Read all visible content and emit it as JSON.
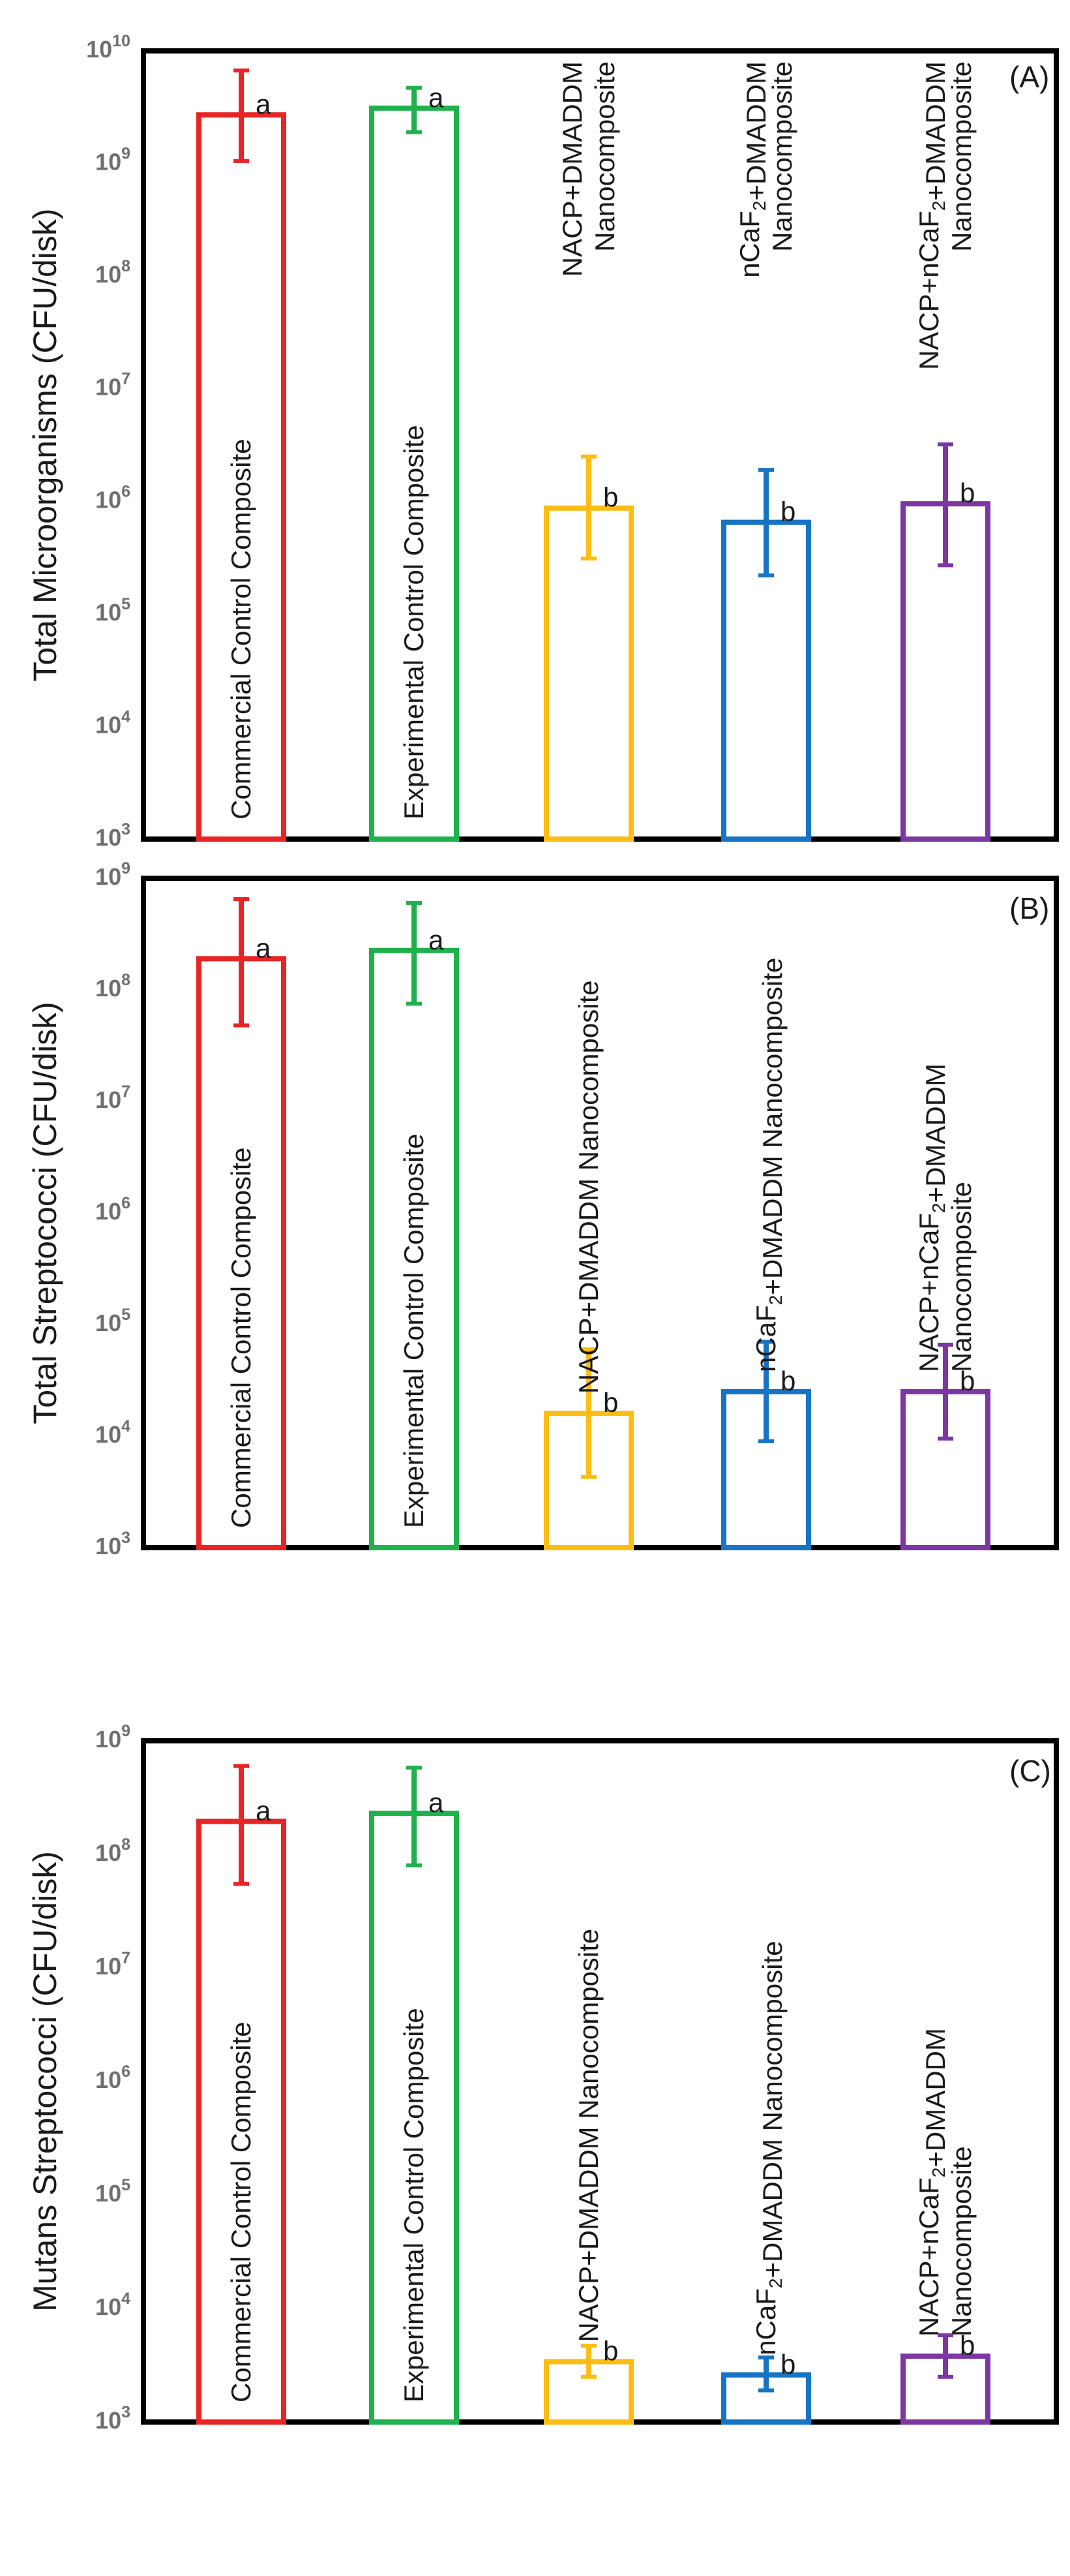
{
  "figure": {
    "panels": [
      {
        "title": "(A)",
        "ylabel": "Total Microorganisms (CFU/disk)"
      },
      {
        "title": "(B)",
        "ylabel": "Total Streptococci (CFU/disk)"
      },
      {
        "title": "(C)",
        "ylabel": "Mutans Streptococci (CFU/disk)"
      }
    ]
  },
  "chart_data": [
    {
      "type": "bar",
      "title": "(A)",
      "ylabel": "Total Microorganisms (CFU/disk)",
      "xlabel": "",
      "yscale": "log",
      "ylim": [
        1000,
        10000000000
      ],
      "yticks": [
        {
          "value": 1000,
          "base": "10",
          "exp": "3"
        },
        {
          "value": 10000,
          "base": "10",
          "exp": "4"
        },
        {
          "value": 100000,
          "base": "10",
          "exp": "5"
        },
        {
          "value": 1000000,
          "base": "10",
          "exp": "6"
        },
        {
          "value": 10000000,
          "base": "10",
          "exp": "7"
        },
        {
          "value": 100000000,
          "base": "10",
          "exp": "8"
        },
        {
          "value": 1000000000,
          "base": "10",
          "exp": "9"
        },
        {
          "value": 10000000000,
          "base": "10",
          "exp": "10"
        }
      ],
      "categories": [
        {
          "lines": [
            [
              {
                "t": "Commercial Control Composite"
              }
            ]
          ],
          "color": "#e82424",
          "value": 2700000000,
          "err_low": 1050000000,
          "err_high": 6700000000,
          "sig": "a"
        },
        {
          "lines": [
            [
              {
                "t": "Experimental Control Composite"
              }
            ]
          ],
          "color": "#1fb14b",
          "value": 3100000000,
          "err_low": 1900000000,
          "err_high": 4700000000,
          "sig": "a"
        },
        {
          "lines": [
            [
              {
                "t": "NACP+DMADDM"
              }
            ],
            [
              {
                "t": "Nanocomposite"
              }
            ]
          ],
          "color": "#fbbd13",
          "value": 870000,
          "err_low": 310000,
          "err_high": 2500000,
          "sig": "b"
        },
        {
          "lines": [
            [
              {
                "t": "nCaF"
              },
              {
                "t": "2",
                "sub": true
              },
              {
                "t": "+DMADDM"
              }
            ],
            [
              {
                "t": "Nanocomposite"
              }
            ]
          ],
          "color": "#1773c4",
          "value": 650000,
          "err_low": 220000,
          "err_high": 1900000,
          "sig": "b"
        },
        {
          "lines": [
            [
              {
                "t": "NACP+nCaF"
              },
              {
                "t": "2",
                "sub": true
              },
              {
                "t": "+DMADDM"
              }
            ],
            [
              {
                "t": "Nanocomposite"
              }
            ]
          ],
          "color": "#7d37a3",
          "value": 950000,
          "err_low": 270000,
          "err_high": 3200000,
          "sig": "b"
        }
      ]
    },
    {
      "type": "bar",
      "title": "(B)",
      "ylabel": "Total Streptococci (CFU/disk)",
      "xlabel": "",
      "yscale": "log",
      "ylim": [
        1000,
        1000000000
      ],
      "yticks": [
        {
          "value": 1000,
          "base": "10",
          "exp": "3"
        },
        {
          "value": 10000,
          "base": "10",
          "exp": "4"
        },
        {
          "value": 100000,
          "base": "10",
          "exp": "5"
        },
        {
          "value": 1000000,
          "base": "10",
          "exp": "6"
        },
        {
          "value": 10000000,
          "base": "10",
          "exp": "7"
        },
        {
          "value": 100000000,
          "base": "10",
          "exp": "8"
        },
        {
          "value": 1000000000,
          "base": "10",
          "exp": "9"
        }
      ],
      "categories": [
        {
          "lines": [
            [
              {
                "t": "Commercial Control Composite"
              }
            ]
          ],
          "color": "#e82424",
          "value": 190000000,
          "err_low": 48000000,
          "err_high": 650000000,
          "sig": "a"
        },
        {
          "lines": [
            [
              {
                "t": "Experimental Control Composite"
              }
            ]
          ],
          "color": "#1fb14b",
          "value": 225000000,
          "err_low": 75000000,
          "err_high": 600000000,
          "sig": "a"
        },
        {
          "lines": [
            [
              {
                "t": "NACP+DMADDM Nanocomposite"
              }
            ]
          ],
          "color": "#fbbd13",
          "value": 16000,
          "err_low": 4300,
          "err_high": 60000,
          "sig": "b"
        },
        {
          "lines": [
            [
              {
                "t": "nCaF"
              },
              {
                "t": "2",
                "sub": true
              },
              {
                "t": "+DMADDM Nanocomposite"
              }
            ]
          ],
          "color": "#1773c4",
          "value": 25000,
          "err_low": 9000,
          "err_high": 70000,
          "sig": "b"
        },
        {
          "lines": [
            [
              {
                "t": "NACP+nCaF"
              },
              {
                "t": "2",
                "sub": true
              },
              {
                "t": "+DMADDM"
              }
            ],
            [
              {
                "t": "Nanocomposite"
              }
            ]
          ],
          "color": "#7d37a3",
          "value": 25000,
          "err_low": 9500,
          "err_high": 66000,
          "sig": "b"
        }
      ]
    },
    {
      "type": "bar",
      "title": "(C)",
      "ylabel": "Mutans Streptococci (CFU/disk)",
      "xlabel": "",
      "yscale": "log",
      "ylim": [
        1000,
        1000000000
      ],
      "yticks": [
        {
          "value": 1000,
          "base": "10",
          "exp": "3"
        },
        {
          "value": 10000,
          "base": "10",
          "exp": "4"
        },
        {
          "value": 100000,
          "base": "10",
          "exp": "5"
        },
        {
          "value": 1000000,
          "base": "10",
          "exp": "6"
        },
        {
          "value": 10000000,
          "base": "10",
          "exp": "7"
        },
        {
          "value": 100000000,
          "base": "10",
          "exp": "8"
        },
        {
          "value": 1000000000,
          "base": "10",
          "exp": "9"
        }
      ],
      "categories": [
        {
          "lines": [
            [
              {
                "t": "Commercial Control Composite"
              }
            ]
          ],
          "color": "#e82424",
          "value": 195000000,
          "err_low": 55000000,
          "err_high": 600000000,
          "sig": "a"
        },
        {
          "lines": [
            [
              {
                "t": "Experimental Control Composite"
              }
            ]
          ],
          "color": "#1fb14b",
          "value": 230000000,
          "err_low": 80000000,
          "err_high": 580000000,
          "sig": "a"
        },
        {
          "lines": [
            [
              {
                "t": "NACP+DMADDM Nanocomposite"
              }
            ]
          ],
          "color": "#fbbd13",
          "value": 3400,
          "err_low": 2500,
          "err_high": 4700,
          "sig": "b"
        },
        {
          "lines": [
            [
              {
                "t": "nCaF"
              },
              {
                "t": "2",
                "sub": true
              },
              {
                "t": "+DMADDM Nanocomposite"
              }
            ]
          ],
          "color": "#1773c4",
          "value": 2600,
          "err_low": 1900,
          "err_high": 3700,
          "sig": "b"
        },
        {
          "lines": [
            [
              {
                "t": "NACP+nCaF"
              },
              {
                "t": "2",
                "sub": true
              },
              {
                "t": "+DMADDM"
              }
            ],
            [
              {
                "t": "Nanocomposite"
              }
            ]
          ],
          "color": "#7d37a3",
          "value": 3800,
          "err_low": 2500,
          "err_high": 5800,
          "sig": "b"
        }
      ]
    }
  ]
}
